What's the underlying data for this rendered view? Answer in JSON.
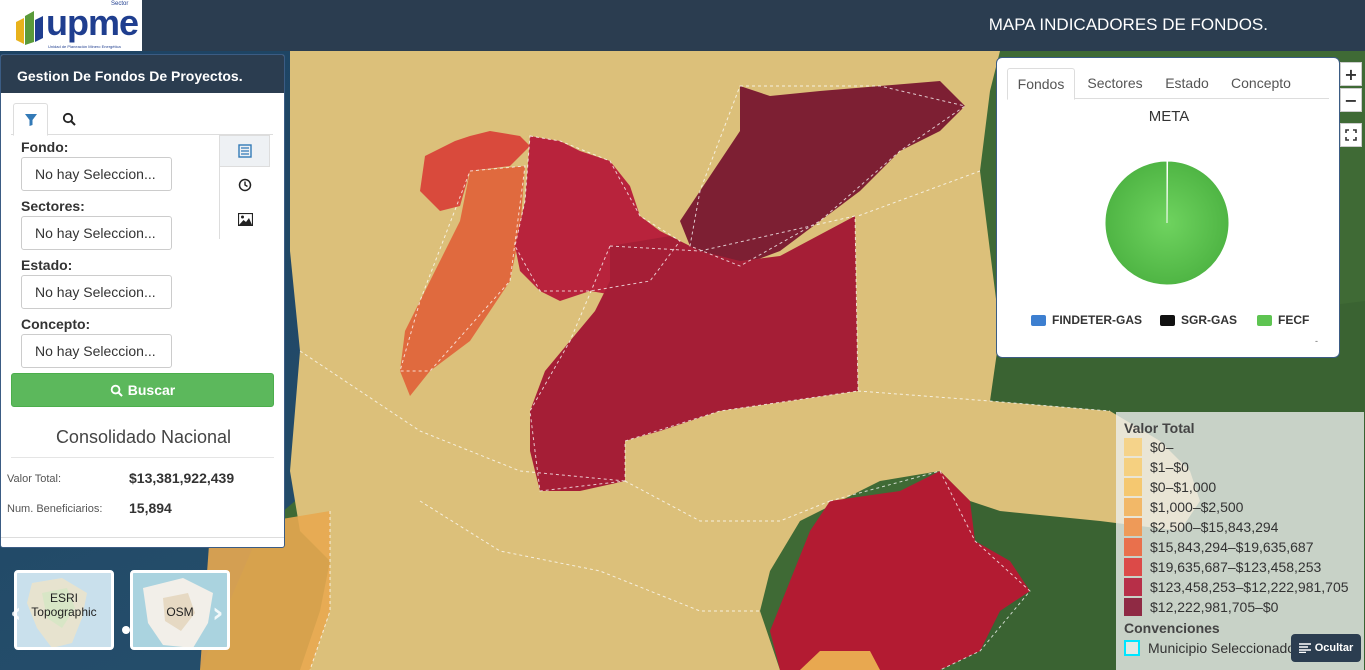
{
  "header": {
    "logo_text": "upme",
    "logo_tag": "Sector",
    "logo_subtitle": "Unidad de Planeación Minero Energética",
    "title": "MAPA INDICADORES DE FONDOS."
  },
  "panel": {
    "title": "Gestion De Fondos De Proyectos.",
    "tabs": [
      "filter-icon",
      "search-icon"
    ],
    "side_icons": [
      "list-icon",
      "clock-icon",
      "image-icon"
    ],
    "filters": [
      {
        "label": "Fondo:",
        "value": "No hay Seleccion..."
      },
      {
        "label": "Sectores:",
        "value": "No hay Seleccion..."
      },
      {
        "label": "Estado:",
        "value": "No hay Seleccion..."
      },
      {
        "label": "Concepto:",
        "value": "No hay Seleccion..."
      }
    ],
    "search_button": "Buscar",
    "summary_title": "Consolidado Nacional",
    "stats": [
      {
        "label": "Valor Total:",
        "value": "$13,381,922,439"
      },
      {
        "label": "Num. Beneficiarios:",
        "value": "15,894"
      }
    ]
  },
  "basemaps": [
    {
      "label": "ESRI Topographic"
    },
    {
      "label": "OSM"
    }
  ],
  "chart": {
    "tabs": [
      "Fondos",
      "Sectores",
      "Estado",
      "Concepto"
    ],
    "active_tab": "Fondos",
    "title": "META",
    "legend": [
      {
        "name": "FINDETER-GAS",
        "color": "#3d7fd0"
      },
      {
        "name": "SGR-GAS",
        "color": "#111111"
      },
      {
        "name": "FECF",
        "color": "#5ec452"
      }
    ],
    "footer": "-"
  },
  "chart_data": {
    "type": "pie",
    "title": "META",
    "series": [
      {
        "name": "FINDETER-GAS",
        "value": 0.1
      },
      {
        "name": "SGR-GAS",
        "value": 0.05
      },
      {
        "name": "FECF",
        "value": 99.85
      }
    ],
    "legend_position": "bottom"
  },
  "zoom": {
    "in": "+",
    "out": "−",
    "fullscreen": "fullscreen-icon"
  },
  "map_legend": {
    "title": "Valor Total",
    "items": [
      {
        "label": "$0–",
        "color": "#f5d38a"
      },
      {
        "label": "$1–$0",
        "color": "#f5d080"
      },
      {
        "label": "$0–$1,000",
        "color": "#f5c870"
      },
      {
        "label": "$1,000–$2,500",
        "color": "#f2b868"
      },
      {
        "label": "$2,500–$15,843,294",
        "color": "#ee9a58"
      },
      {
        "label": "$15,843,294–$19,635,687",
        "color": "#e9704c"
      },
      {
        "label": "$19,635,687–$123,458,253",
        "color": "#dc4a48"
      },
      {
        "label": "$123,458,253–$12,222,981,705",
        "color": "#b72f48"
      },
      {
        "label": "$12,222,981,705–$0",
        "color": "#8f2a44"
      }
    ],
    "conventions_title": "Convenciones",
    "conventions": [
      {
        "label": "Municipio Seleccionado"
      }
    ]
  },
  "hide_button": "Ocultar"
}
